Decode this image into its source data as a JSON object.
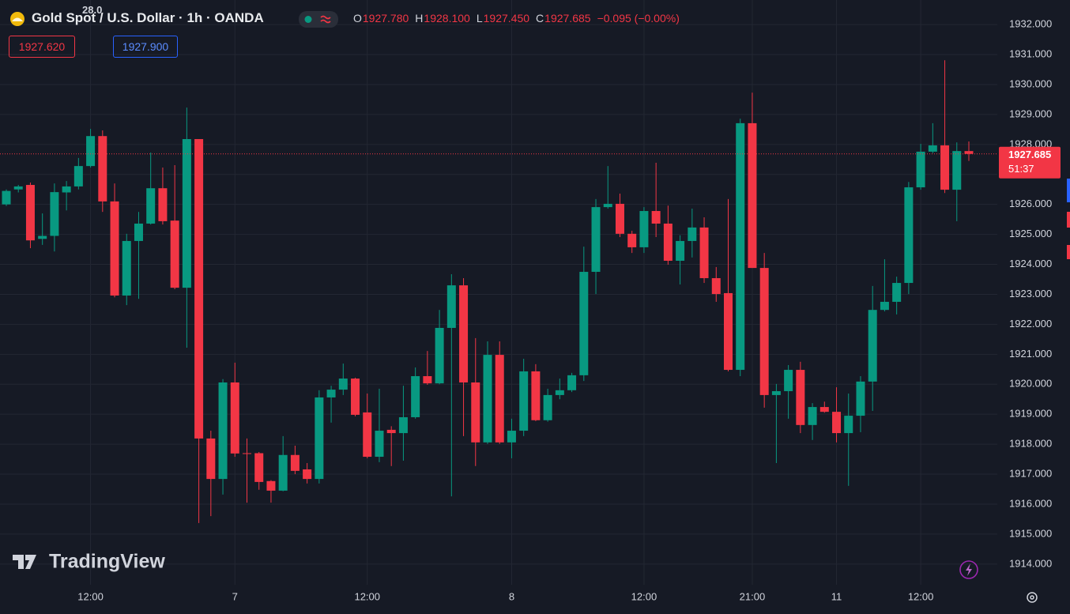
{
  "header": {
    "title": "Gold Spot / U.S. Dollar · 1h · OANDA",
    "ohlc": [
      {
        "key": "O",
        "value": "1927.780"
      },
      {
        "key": "H",
        "value": "1928.100"
      },
      {
        "key": "L",
        "value": "1927.450"
      },
      {
        "key": "C",
        "value": "1927.685"
      }
    ],
    "change": "−0.095 (−0.00%)",
    "bid": "1927.620",
    "spread": "28.0",
    "ask": "1927.900"
  },
  "watermark": "TradingView",
  "chart_data": {
    "type": "candlestick",
    "up_color": "#089981",
    "down_color": "#f23645",
    "grid": true,
    "categories": [
      null,
      null,
      null,
      null,
      null,
      null,
      null,
      "12:00",
      null,
      null,
      null,
      null,
      null,
      null,
      null,
      null,
      null,
      null,
      null,
      "7",
      null,
      null,
      null,
      null,
      null,
      null,
      null,
      null,
      null,
      null,
      "12:00",
      null,
      null,
      null,
      null,
      null,
      null,
      null,
      null,
      null,
      null,
      null,
      "8",
      null,
      null,
      null,
      null,
      null,
      null,
      null,
      null,
      null,
      null,
      "12:00",
      null,
      null,
      null,
      null,
      null,
      null,
      null,
      null,
      "21:00",
      null,
      null,
      null,
      null,
      null,
      null,
      "11",
      null,
      null,
      null,
      null,
      null,
      null,
      "12:00",
      null,
      null,
      null,
      null
    ],
    "open": [
      1926.0,
      1926.5,
      1926.65,
      1924.85,
      1924.95,
      1926.4,
      1926.6,
      1927.28,
      1928.28,
      1926.1,
      1922.96,
      1924.78,
      1925.36,
      1926.54,
      1925.46,
      1923.22,
      1928.18,
      1918.19,
      1916.84,
      1920.06,
      1917.7,
      1917.7,
      1916.77,
      1916.45,
      1917.64,
      1917.16,
      1916.84,
      1919.56,
      1919.82,
      1920.19,
      1919.06,
      1917.58,
      1918.48,
      1918.37,
      1918.9,
      1920.27,
      1920.03,
      1921.88,
      1923.3,
      1920.06,
      1918.06,
      1920.98,
      1918.06,
      1918.45,
      1920.43,
      1918.8,
      1919.64,
      1919.8,
      1920.3,
      1923.75,
      1925.91,
      1926.02,
      1925.02,
      1924.57,
      1925.78,
      1925.36,
      1924.12,
      1924.78,
      1925.23,
      1923.54,
      1923.04,
      1920.48,
      1928.71,
      1923.88,
      1919.64,
      1919.77,
      1920.48,
      1918.64,
      1919.24,
      1919.08,
      1918.37,
      1918.95,
      1920.09,
      1922.48,
      1922.75,
      1923.38,
      1926.57,
      1927.76,
      1927.97,
      1926.49,
      1927.78
    ],
    "high": [
      1926.5,
      1926.65,
      1926.73,
      1925.7,
      1926.7,
      1926.78,
      1927.55,
      1928.52,
      1928.47,
      1926.7,
      1925.02,
      1925.75,
      1927.73,
      1927.23,
      1927.31,
      1929.23,
      1928.18,
      1918.45,
      1920.17,
      1920.72,
      1918.19,
      1917.74,
      1916.8,
      1918.27,
      1917.95,
      1917.37,
      1919.8,
      1919.95,
      1920.69,
      1920.22,
      1919.69,
      1919.85,
      1918.6,
      1919.95,
      1920.56,
      1921.11,
      1922.48,
      1923.67,
      1923.54,
      1921.54,
      1921.43,
      1921.43,
      1918.85,
      1920.85,
      1920.67,
      1919.85,
      1920.19,
      1920.38,
      1924.59,
      1926.18,
      1927.28,
      1926.36,
      1925.12,
      1925.91,
      1927.39,
      1925.96,
      1924.97,
      1925.86,
      1925.57,
      1923.91,
      1926.18,
      1928.86,
      1929.73,
      1924.38,
      1920.01,
      1920.64,
      1920.75,
      1919.37,
      1919.42,
      1919.9,
      1919.69,
      1920.27,
      1923.28,
      1924.17,
      1923.59,
      1926.75,
      1928.02,
      1928.71,
      1930.81,
      1928.07,
      1928.1
    ],
    "low": [
      1925.95,
      1926.4,
      1924.54,
      1924.65,
      1924.43,
      1925.8,
      1926.5,
      1927.23,
      1925.75,
      1922.9,
      1922.64,
      1922.85,
      1925.33,
      1925.33,
      1923.17,
      1921.22,
      1915.37,
      1915.6,
      1916.32,
      1917.58,
      1916.05,
      1916.48,
      1916.05,
      1916.43,
      1917.0,
      1916.69,
      1916.69,
      1918.72,
      1919.64,
      1918.93,
      1917.53,
      1917.4,
      1917.27,
      1917.45,
      1918.85,
      1919.98,
      1920.0,
      1916.26,
      1918.27,
      1917.27,
      1918.01,
      1918.01,
      1917.53,
      1918.27,
      1918.77,
      1918.75,
      1919.5,
      1919.74,
      1920.11,
      1923.01,
      1925.86,
      1924.91,
      1924.38,
      1924.38,
      1924.91,
      1923.99,
      1923.33,
      1924.23,
      1923.38,
      1922.75,
      1920.43,
      1920.27,
      1923.88,
      1919.22,
      1917.37,
      1918.85,
      1918.37,
      1918.14,
      1919.05,
      1918.06,
      1916.61,
      1918.4,
      1919.11,
      1922.43,
      1922.33,
      1923.01,
      1926.49,
      1927.71,
      1926.38,
      1925.44,
      1927.45
    ],
    "close": [
      1926.45,
      1926.6,
      1924.8,
      1924.95,
      1926.41,
      1926.6,
      1927.28,
      1928.28,
      1926.1,
      1922.96,
      1924.78,
      1925.36,
      1926.54,
      1925.44,
      1923.22,
      1928.18,
      1918.19,
      1916.84,
      1920.06,
      1917.69,
      1917.68,
      1916.74,
      1916.45,
      1917.64,
      1917.11,
      1916.84,
      1919.56,
      1919.82,
      1920.19,
      1918.98,
      1917.58,
      1918.45,
      1918.37,
      1918.9,
      1920.27,
      1920.03,
      1921.88,
      1923.3,
      1920.06,
      1918.06,
      1920.98,
      1918.06,
      1918.45,
      1920.43,
      1918.8,
      1919.64,
      1919.8,
      1920.3,
      1923.75,
      1925.91,
      1926.02,
      1925.02,
      1924.57,
      1925.78,
      1925.36,
      1924.12,
      1924.78,
      1925.23,
      1923.54,
      1923.01,
      1920.48,
      1928.71,
      1923.88,
      1919.64,
      1919.77,
      1920.48,
      1918.64,
      1919.24,
      1919.08,
      1918.37,
      1918.95,
      1920.09,
      1922.48,
      1922.75,
      1923.38,
      1926.57,
      1927.76,
      1927.97,
      1926.49,
      1927.78,
      1927.685
    ],
    "ylim": [
      1913.31,
      1932.82
    ],
    "yticks": [
      {
        "value": 1914,
        "label": "1914.000"
      },
      {
        "value": 1915,
        "label": "1915.000"
      },
      {
        "value": 1916,
        "label": "1916.000"
      },
      {
        "value": 1917,
        "label": "1917.000"
      },
      {
        "value": 1918,
        "label": "1918.000"
      },
      {
        "value": 1919,
        "label": "1919.000"
      },
      {
        "value": 1920,
        "label": "1920.000"
      },
      {
        "value": 1921,
        "label": "1921.000"
      },
      {
        "value": 1922,
        "label": "1922.000"
      },
      {
        "value": 1923,
        "label": "1923.000"
      },
      {
        "value": 1924,
        "label": "1924.000"
      },
      {
        "value": 1925,
        "label": "1925.000"
      },
      {
        "value": 1926,
        "label": "1926.000"
      },
      {
        "value": 1927,
        "label": "1927.000"
      },
      {
        "value": 1928,
        "label": "1928.000"
      },
      {
        "value": 1929,
        "label": "1929.000"
      },
      {
        "value": 1930,
        "label": "1930.000"
      },
      {
        "value": 1931,
        "label": "1931.000"
      },
      {
        "value": 1932,
        "label": "1932.000"
      }
    ],
    "last_price": {
      "value": 1927.685,
      "label": "1927.685"
    },
    "countdown": "51:37"
  }
}
